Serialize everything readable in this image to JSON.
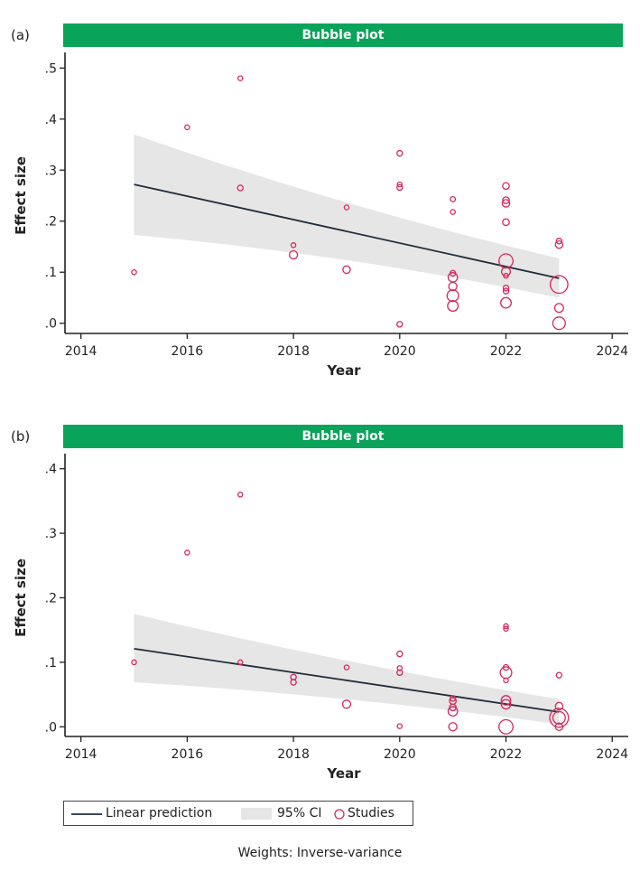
{
  "panels": [
    {
      "label": "(a)",
      "banner": "Bubble plot",
      "chart_data": {
        "type": "scatter",
        "title": "Bubble plot",
        "xlabel": "Year",
        "ylabel": "Effect size",
        "xlim": [
          2013.7,
          2024.2
        ],
        "ylim": [
          -0.02,
          0.52
        ],
        "xticks": [
          2014,
          2016,
          2018,
          2020,
          2022,
          2024
        ],
        "yticks": [
          0.0,
          0.1,
          0.2,
          0.3,
          0.4,
          0.5
        ],
        "ytick_labels": [
          ".0",
          ".1",
          ".2",
          ".3",
          ".4",
          ".5"
        ],
        "fit": {
          "x": [
            2015,
            2023
          ],
          "y": [
            0.272,
            0.088
          ]
        },
        "ci_lower": {
          "x": [
            2015,
            2023
          ],
          "y": [
            0.173,
            0.05
          ]
        },
        "ci_upper": {
          "x": [
            2015,
            2023
          ],
          "y": [
            0.37,
            0.127
          ]
        },
        "points": [
          {
            "x": 2015,
            "y": 0.1,
            "w": 1
          },
          {
            "x": 2016,
            "y": 0.384,
            "w": 1
          },
          {
            "x": 2017,
            "y": 0.48,
            "w": 1
          },
          {
            "x": 2017,
            "y": 0.265,
            "w": 1.4
          },
          {
            "x": 2018,
            "y": 0.153,
            "w": 1
          },
          {
            "x": 2018,
            "y": 0.134,
            "w": 3
          },
          {
            "x": 2019,
            "y": 0.227,
            "w": 1
          },
          {
            "x": 2019,
            "y": 0.105,
            "w": 2.5
          },
          {
            "x": 2020,
            "y": 0.333,
            "w": 1.4
          },
          {
            "x": 2020,
            "y": 0.272,
            "w": 1
          },
          {
            "x": 2020,
            "y": 0.266,
            "w": 1.4
          },
          {
            "x": 2020,
            "y": -0.002,
            "w": 1.4
          },
          {
            "x": 2021,
            "y": 0.243,
            "w": 1.2
          },
          {
            "x": 2021,
            "y": 0.218,
            "w": 1
          },
          {
            "x": 2021,
            "y": 0.098,
            "w": 1.4
          },
          {
            "x": 2021,
            "y": 0.09,
            "w": 4
          },
          {
            "x": 2021,
            "y": 0.072,
            "w": 3
          },
          {
            "x": 2021,
            "y": 0.054,
            "w": 6
          },
          {
            "x": 2021,
            "y": 0.034,
            "w": 5
          },
          {
            "x": 2022,
            "y": 0.269,
            "w": 2
          },
          {
            "x": 2022,
            "y": 0.241,
            "w": 2
          },
          {
            "x": 2022,
            "y": 0.235,
            "w": 2.5
          },
          {
            "x": 2022,
            "y": 0.198,
            "w": 2
          },
          {
            "x": 2022,
            "y": 0.122,
            "w": 9
          },
          {
            "x": 2022,
            "y": 0.101,
            "w": 3.5
          },
          {
            "x": 2022,
            "y": 0.093,
            "w": 1
          },
          {
            "x": 2022,
            "y": 0.069,
            "w": 1.4
          },
          {
            "x": 2022,
            "y": 0.063,
            "w": 1.4
          },
          {
            "x": 2022,
            "y": 0.04,
            "w": 5
          },
          {
            "x": 2023,
            "y": 0.161,
            "w": 1.4
          },
          {
            "x": 2023,
            "y": 0.154,
            "w": 2.5
          },
          {
            "x": 2023,
            "y": 0.076,
            "w": 14
          },
          {
            "x": 2023,
            "y": 0.03,
            "w": 3.5
          },
          {
            "x": 2023,
            "y": 0.0,
            "w": 7
          }
        ]
      }
    },
    {
      "label": "(b)",
      "banner": "Bubble plot",
      "chart_data": {
        "type": "scatter",
        "title": "Bubble plot",
        "xlabel": "Year",
        "ylabel": "Effect size",
        "xlim": [
          2013.7,
          2024.2
        ],
        "ylim": [
          -0.015,
          0.415
        ],
        "xticks": [
          2014,
          2016,
          2018,
          2020,
          2022,
          2024
        ],
        "yticks": [
          0.0,
          0.1,
          0.2,
          0.3,
          0.4
        ],
        "ytick_labels": [
          ".0",
          ".1",
          ".2",
          ".3",
          ".4"
        ],
        "fit": {
          "x": [
            2015,
            2023
          ],
          "y": [
            0.121,
            0.023
          ]
        },
        "ci_lower": {
          "x": [
            2015,
            2023
          ],
          "y": [
            0.069,
            0.004
          ]
        },
        "ci_upper": {
          "x": [
            2015,
            2023
          ],
          "y": [
            0.175,
            0.043
          ]
        },
        "points": [
          {
            "x": 2015,
            "y": 0.1,
            "w": 1
          },
          {
            "x": 2016,
            "y": 0.27,
            "w": 1
          },
          {
            "x": 2017,
            "y": 0.36,
            "w": 1
          },
          {
            "x": 2017,
            "y": 0.1,
            "w": 1
          },
          {
            "x": 2018,
            "y": 0.077,
            "w": 1.4
          },
          {
            "x": 2018,
            "y": 0.069,
            "w": 1.4
          },
          {
            "x": 2019,
            "y": 0.092,
            "w": 1
          },
          {
            "x": 2019,
            "y": 0.035,
            "w": 3
          },
          {
            "x": 2020,
            "y": 0.113,
            "w": 1.4
          },
          {
            "x": 2020,
            "y": 0.091,
            "w": 1
          },
          {
            "x": 2020,
            "y": 0.084,
            "w": 1.4
          },
          {
            "x": 2020,
            "y": 0.001,
            "w": 1
          },
          {
            "x": 2021,
            "y": 0.044,
            "w": 1.4
          },
          {
            "x": 2021,
            "y": 0.04,
            "w": 2
          },
          {
            "x": 2021,
            "y": 0.03,
            "w": 2
          },
          {
            "x": 2021,
            "y": 0.024,
            "w": 4
          },
          {
            "x": 2021,
            "y": 0.0,
            "w": 3
          },
          {
            "x": 2022,
            "y": 0.156,
            "w": 1
          },
          {
            "x": 2022,
            "y": 0.152,
            "w": 1
          },
          {
            "x": 2022,
            "y": 0.092,
            "w": 1.4
          },
          {
            "x": 2022,
            "y": 0.084,
            "w": 6
          },
          {
            "x": 2022,
            "y": 0.072,
            "w": 1
          },
          {
            "x": 2022,
            "y": 0.041,
            "w": 4
          },
          {
            "x": 2022,
            "y": 0.035,
            "w": 4
          },
          {
            "x": 2022,
            "y": 0.0,
            "w": 9
          },
          {
            "x": 2023,
            "y": 0.08,
            "w": 1.4
          },
          {
            "x": 2023,
            "y": 0.032,
            "w": 2.5
          },
          {
            "x": 2023,
            "y": 0.014,
            "w": 16
          },
          {
            "x": 2023,
            "y": 0.014,
            "w": 7
          },
          {
            "x": 2023,
            "y": 0.0,
            "w": 2.5
          }
        ]
      }
    }
  ],
  "legend": {
    "line_label": "Linear prediction",
    "ci_label": "95% CI",
    "points_label": "Studies"
  },
  "footnote": "Weights: Inverse-variance",
  "colors": {
    "banner": "#0aa35a",
    "line": "#1f2d3d",
    "ci": "#e6e6e6",
    "marker": "#d6285a",
    "axis": "#222222"
  }
}
